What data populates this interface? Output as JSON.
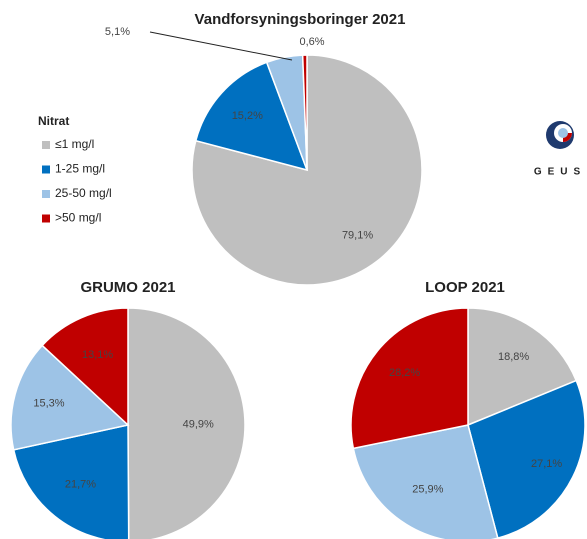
{
  "legend": {
    "title": "Nitrat",
    "labels": [
      "≤1 mg/l",
      "1-25 mg/l",
      "25-50 mg/l",
      ">50 mg/l"
    ],
    "colors": [
      "#bfbfbf",
      "#0070c0",
      "#9dc3e6",
      "#c00000"
    ]
  },
  "logo": {
    "text": "GEUS"
  },
  "chart_data": [
    {
      "type": "pie",
      "title": "Vandforsyningsboringer 2021",
      "values": [
        79.1,
        15.2,
        5.1,
        0.6
      ],
      "value_labels": [
        "79,1%",
        "15,2%",
        "5,1%",
        "0,6%"
      ]
    },
    {
      "type": "pie",
      "title": "GRUMO 2021",
      "values": [
        49.9,
        21.7,
        15.3,
        13.1
      ],
      "value_labels": [
        "49,9%",
        "21,7%",
        "15,3%",
        "13,1%"
      ]
    },
    {
      "type": "pie",
      "title": "LOOP 2021",
      "values": [
        18.8,
        27.1,
        25.9,
        28.2
      ],
      "value_labels": [
        "18,8%",
        "27,1%",
        "25,9%",
        "28,2%"
      ]
    }
  ]
}
